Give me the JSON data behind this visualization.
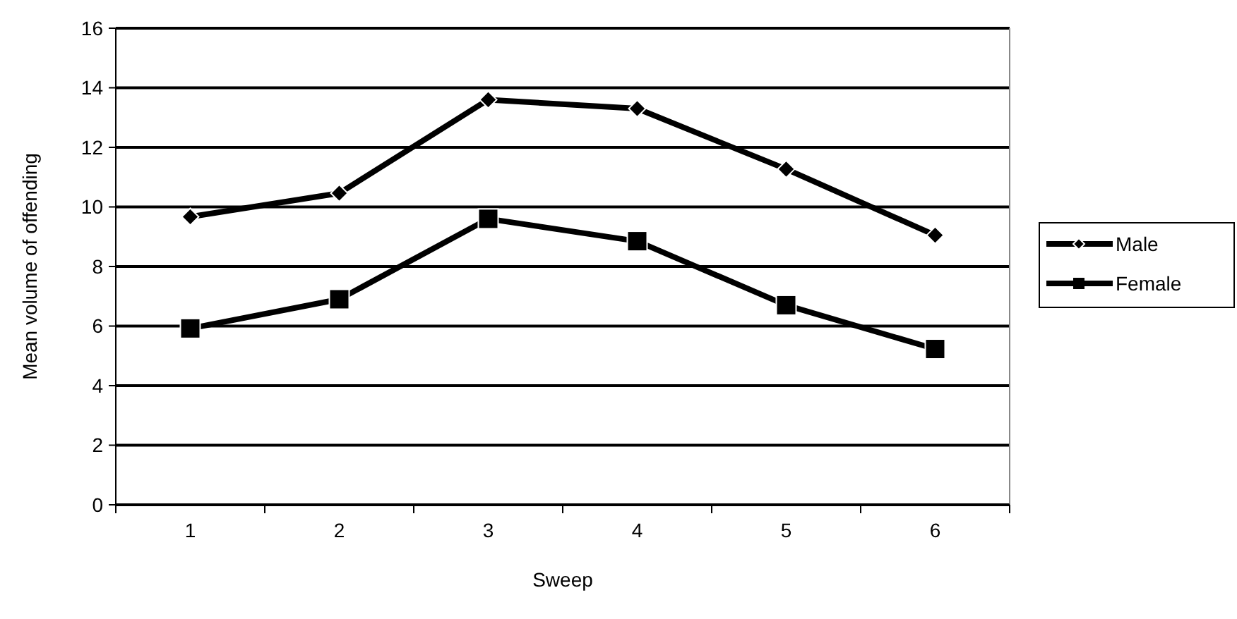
{
  "chart_data": {
    "type": "line",
    "xlabel": "Sweep",
    "ylabel": "Mean volume of offending",
    "categories": [
      "1",
      "2",
      "3",
      "4",
      "5",
      "6"
    ],
    "ylim": [
      0,
      16
    ],
    "yticks": [
      0,
      2,
      4,
      6,
      8,
      10,
      12,
      14,
      16
    ],
    "grid": "y",
    "legend": "right",
    "series": [
      {
        "name": "Male",
        "color": "#000000",
        "marker": "diamond",
        "values": [
          9.67,
          10.46,
          13.6,
          13.3,
          11.27,
          9.05
        ]
      },
      {
        "name": "Female",
        "color": "#000000",
        "marker": "square",
        "values": [
          5.92,
          6.9,
          9.6,
          8.85,
          6.7,
          5.23
        ]
      }
    ]
  }
}
